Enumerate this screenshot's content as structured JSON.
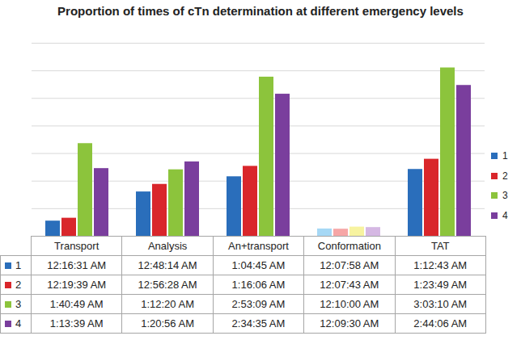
{
  "chart_data": {
    "type": "bar",
    "title": "Proportion of times of cTn determination at different emergency levels",
    "categories": [
      "Transport",
      "Analysis",
      "An+transport",
      "Conformation",
      "TAT"
    ],
    "series": [
      {
        "name": "1",
        "color": "#2a6ebb",
        "colors": [
          "#2a6ebb",
          "#2a6ebb",
          "#2a6ebb",
          "#a6d8f5",
          "#2a6ebb"
        ],
        "values": [
          991,
          2894,
          3885,
          478,
          4363
        ],
        "value_labels": [
          "12:16:31 AM",
          "12:48:14 AM",
          "1:04:45 AM",
          "12:07:58 AM",
          "1:12:43 AM"
        ]
      },
      {
        "name": "2",
        "color": "#d9262b",
        "colors": [
          "#d9262b",
          "#d9262b",
          "#d9262b",
          "#f6a6a6",
          "#d9262b"
        ],
        "values": [
          1179,
          3388,
          4566,
          463,
          5029
        ],
        "value_labels": [
          "12:19:39 AM",
          "12:56:28 AM",
          "1:16:06 AM",
          "12:07:43 AM",
          "1:23:49 AM"
        ]
      },
      {
        "name": "3",
        "color": "#8cc43c",
        "colors": [
          "#8cc43c",
          "#8cc43c",
          "#8cc43c",
          "#f7f3a0",
          "#8cc43c"
        ],
        "values": [
          6049,
          4340,
          10389,
          600,
          10990
        ],
        "value_labels": [
          "1:40:49 AM",
          "1:12:20 AM",
          "2:53:09 AM",
          "12:10:00 AM",
          "3:03:10 AM"
        ]
      },
      {
        "name": "4",
        "color": "#7a3e9d",
        "colors": [
          "#7a3e9d",
          "#7a3e9d",
          "#7a3e9d",
          "#d5b8e3",
          "#7a3e9d"
        ],
        "values": [
          4419,
          4856,
          9275,
          570,
          9846
        ],
        "value_labels": [
          "1:13:39 AM",
          "1:20:56 AM",
          "2:34:35 AM",
          "12:09:30 AM",
          "2:44:06 AM"
        ]
      }
    ],
    "ylim": [
      0,
      12600
    ],
    "yticks": [
      0,
      1800,
      3600,
      5400,
      7200,
      9000,
      10800,
      12600
    ],
    "grid": true,
    "tick_labels": false,
    "legend": "right"
  }
}
